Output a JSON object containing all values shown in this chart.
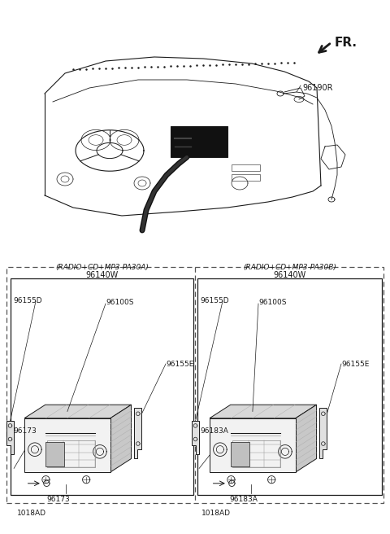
{
  "bg_color": "#ffffff",
  "line_color": "#1a1a1a",
  "gray_light": "#e0e0e0",
  "gray_mid": "#b0b0b0",
  "gray_dark": "#808080",
  "black": "#000000",
  "fr_label": "FR.",
  "part_96190R": "96190R",
  "left_box_title1": "(RADIO+CD+MP3-PA30A)",
  "left_box_title2": "96140W",
  "right_box_title1": "(RADIO+CD+MP3-PA30B)",
  "right_box_title2": "96140W",
  "left_labels": {
    "96155D": "96155D",
    "96100S": "96100S",
    "96155E": "96155E",
    "96173a": "96173",
    "96173b": "96173",
    "1018AD": "1018AD"
  },
  "right_labels": {
    "96155D": "96155D",
    "96100S": "96100S",
    "96155E": "96155E",
    "96183Aa": "96183A",
    "96183Ab": "96183A",
    "1018AD": "1018AD"
  },
  "font_size_small": 6.5,
  "font_size_med": 7.5,
  "font_size_fr": 11
}
